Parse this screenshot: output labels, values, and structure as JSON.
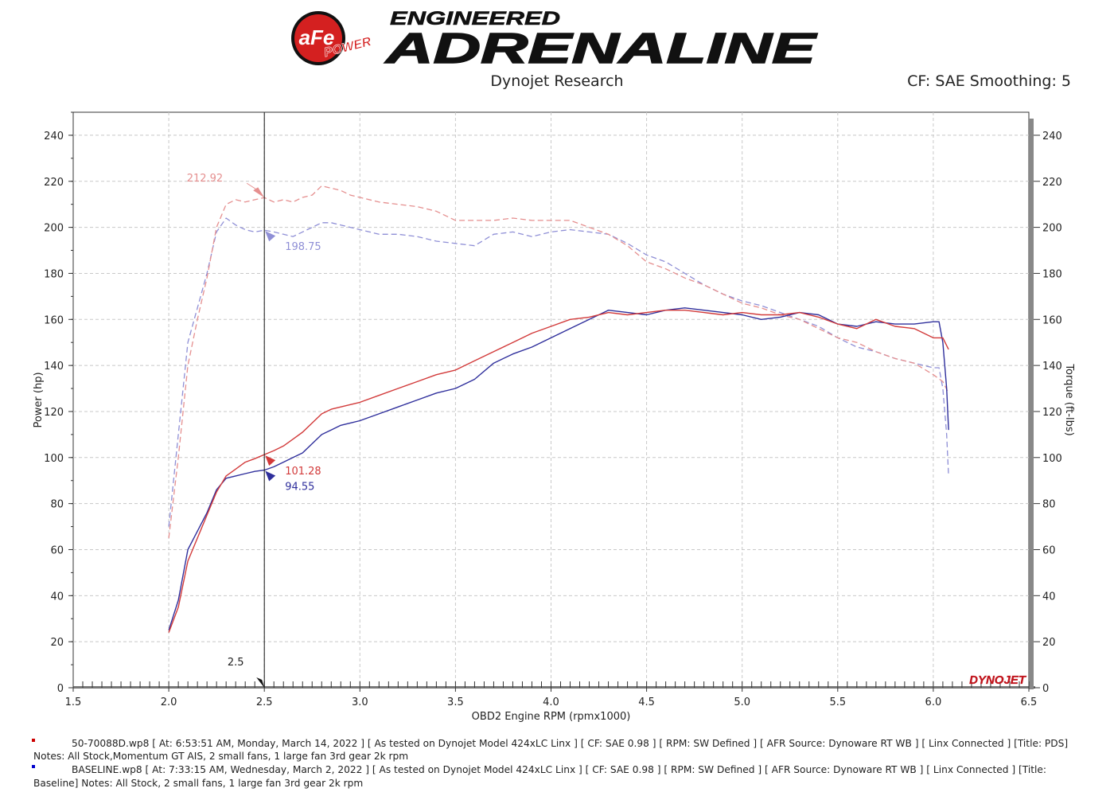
{
  "header": {
    "logo_badge": "aFe",
    "logo_badge_sub": "POWER",
    "logo_line1": "ENGINEERED",
    "logo_line2": "ADRENALINE",
    "center_text": "Dynojet Research",
    "right_text": "CF: SAE Smoothing: 5",
    "brand_mark": "DYNOJET"
  },
  "chart_data": {
    "type": "line",
    "xlabel": "OBD2 Engine RPM (rpmx1000)",
    "ylabel": "Power (hp)",
    "y2label": "Torque (ft-lbs)",
    "xlim": [
      1.5,
      6.5
    ],
    "ylim": [
      0,
      250
    ],
    "y2lim": [
      0,
      250
    ],
    "x_ticks": [
      "1.5",
      "2.0",
      "2.5",
      "3.0",
      "3.5",
      "4.0",
      "4.5",
      "5.0",
      "5.5",
      "6.0",
      "6.5"
    ],
    "y_ticks": [
      "0",
      "20",
      "40",
      "60",
      "80",
      "100",
      "120",
      "140",
      "160",
      "180",
      "200",
      "220",
      "240"
    ],
    "grid": true,
    "cursor": {
      "x": 2.5,
      "label": "2.5"
    },
    "colors": {
      "pds": "#d23a3a",
      "baseline": "#2f2f9c",
      "pds_torque": "#e58f8f",
      "baseline_torque": "#8f8fd6"
    },
    "series": [
      {
        "name": "PDS",
        "measure": "power",
        "axis": "left",
        "dashed": false,
        "color_key": "pds",
        "x": [
          2.0,
          2.05,
          2.1,
          2.15,
          2.2,
          2.25,
          2.3,
          2.35,
          2.4,
          2.45,
          2.5,
          2.55,
          2.6,
          2.65,
          2.7,
          2.75,
          2.8,
          2.85,
          2.9,
          2.95,
          3.0,
          3.1,
          3.2,
          3.3,
          3.4,
          3.5,
          3.6,
          3.7,
          3.8,
          3.9,
          4.0,
          4.1,
          4.2,
          4.3,
          4.4,
          4.5,
          4.6,
          4.7,
          4.8,
          4.9,
          5.0,
          5.1,
          5.2,
          5.3,
          5.4,
          5.5,
          5.6,
          5.7,
          5.8,
          5.9,
          6.0,
          6.05,
          6.08
        ],
        "y": [
          24,
          35,
          55,
          65,
          75,
          85,
          92,
          95,
          98,
          99.5,
          101.28,
          103,
          105,
          108,
          111,
          115,
          119,
          121,
          122,
          123,
          124,
          127,
          130,
          133,
          136,
          138,
          142,
          146,
          150,
          154,
          157,
          160,
          161,
          163,
          162,
          163,
          164,
          164,
          163,
          162,
          163,
          162,
          162,
          163,
          161,
          158,
          156,
          160,
          157,
          156,
          152,
          152,
          147
        ]
      },
      {
        "name": "Baseline",
        "measure": "power",
        "axis": "left",
        "dashed": false,
        "color_key": "baseline",
        "x": [
          2.0,
          2.05,
          2.1,
          2.15,
          2.2,
          2.25,
          2.3,
          2.35,
          2.4,
          2.45,
          2.5,
          2.55,
          2.6,
          2.65,
          2.7,
          2.75,
          2.8,
          2.85,
          2.9,
          2.95,
          3.0,
          3.1,
          3.2,
          3.3,
          3.4,
          3.5,
          3.6,
          3.7,
          3.8,
          3.9,
          4.0,
          4.1,
          4.2,
          4.3,
          4.4,
          4.5,
          4.6,
          4.7,
          4.8,
          4.9,
          5.0,
          5.1,
          5.2,
          5.3,
          5.4,
          5.5,
          5.6,
          5.7,
          5.8,
          5.9,
          6.0,
          6.03,
          6.05,
          6.07,
          6.08
        ],
        "y": [
          25,
          38,
          60,
          68,
          76,
          86,
          91,
          92,
          93,
          94,
          94.55,
          96,
          98,
          100,
          102,
          106,
          110,
          112,
          114,
          115,
          116,
          119,
          122,
          125,
          128,
          130,
          134,
          141,
          145,
          148,
          152,
          156,
          160,
          164,
          163,
          162,
          164,
          165,
          164,
          163,
          162,
          160,
          161,
          163,
          162,
          158,
          157,
          159,
          158,
          158,
          159,
          159,
          150,
          130,
          112
        ]
      },
      {
        "name": "PDS",
        "measure": "torque",
        "axis": "right",
        "dashed": true,
        "color_key": "pds_torque",
        "x": [
          2.0,
          2.05,
          2.1,
          2.15,
          2.2,
          2.25,
          2.3,
          2.35,
          2.4,
          2.45,
          2.5,
          2.55,
          2.6,
          2.65,
          2.7,
          2.75,
          2.8,
          2.85,
          2.9,
          2.95,
          3.0,
          3.1,
          3.2,
          3.3,
          3.4,
          3.5,
          3.6,
          3.7,
          3.8,
          3.9,
          4.0,
          4.1,
          4.2,
          4.3,
          4.4,
          4.5,
          4.6,
          4.7,
          4.8,
          4.9,
          5.0,
          5.1,
          5.2,
          5.3,
          5.4,
          5.5,
          5.6,
          5.7,
          5.8,
          5.9,
          6.0,
          6.05,
          6.08
        ],
        "y": [
          65,
          100,
          140,
          160,
          178,
          200,
          210,
          212,
          211,
          212,
          212.92,
          211,
          212,
          211,
          213,
          214,
          218,
          217,
          216,
          214,
          213,
          211,
          210,
          209,
          207,
          203,
          203,
          203,
          204,
          203,
          203,
          203,
          200,
          197,
          192,
          185,
          182,
          178,
          175,
          171,
          167,
          165,
          162,
          160,
          156,
          152,
          150,
          146,
          143,
          141,
          136,
          133,
          128
        ]
      },
      {
        "name": "Baseline",
        "measure": "torque",
        "axis": "right",
        "dashed": true,
        "color_key": "baseline_torque",
        "x": [
          2.0,
          2.05,
          2.1,
          2.15,
          2.2,
          2.25,
          2.3,
          2.35,
          2.4,
          2.45,
          2.5,
          2.55,
          2.6,
          2.65,
          2.7,
          2.75,
          2.8,
          2.85,
          2.9,
          2.95,
          3.0,
          3.1,
          3.2,
          3.3,
          3.4,
          3.5,
          3.6,
          3.7,
          3.8,
          3.9,
          4.0,
          4.1,
          4.2,
          4.3,
          4.4,
          4.5,
          4.6,
          4.7,
          4.8,
          4.9,
          5.0,
          5.1,
          5.2,
          5.3,
          5.4,
          5.5,
          5.6,
          5.7,
          5.8,
          5.9,
          6.0,
          6.03,
          6.05,
          6.07,
          6.08
        ],
        "y": [
          70,
          110,
          150,
          165,
          180,
          198,
          204,
          201,
          199,
          198,
          198.75,
          198,
          197,
          196,
          198,
          200,
          202,
          202,
          201,
          200,
          199,
          197,
          197,
          196,
          194,
          193,
          192,
          197,
          198,
          196,
          198,
          199,
          198,
          197,
          193,
          188,
          185,
          180,
          175,
          171,
          168,
          166,
          163,
          160,
          157,
          152,
          148,
          146,
          143,
          141,
          139,
          139,
          130,
          110,
          92
        ]
      }
    ],
    "annotations": [
      {
        "x": 2.5,
        "value": 212.92,
        "label": "212.92",
        "axis": "right",
        "color_key": "pds_torque",
        "label_side": "left"
      },
      {
        "x": 2.5,
        "value": 198.75,
        "label": "198.75",
        "axis": "right",
        "color_key": "baseline_torque",
        "label_side": "right"
      },
      {
        "x": 2.5,
        "value": 101.28,
        "label": "101.28",
        "axis": "left",
        "color_key": "pds",
        "label_side": "right"
      },
      {
        "x": 2.5,
        "value": 94.55,
        "label": "94.55",
        "axis": "left",
        "color_key": "baseline",
        "label_side": "right"
      }
    ]
  },
  "legend": [
    {
      "marker_color": "#cc0000",
      "file": "50-70088D.wp8",
      "details": "[ At: 6:53:51 AM, Monday, March 14, 2022 ] [ As tested on Dynojet Model 424xLC Linx ] [ CF: SAE 0.98 ] [ RPM: SW Defined ] [ AFR Source: Dynoware RT WB ] [ Linx Connected ] [Title: PDS]  Notes: All Stock,Momentum GT AIS, 2 small fans, 1 large fan 3rd gear 2k rpm"
    },
    {
      "marker_color": "#0000cc",
      "file": "BASELINE.wp8",
      "details": "[ At: 7:33:15 AM, Wednesday, March 2, 2022 ] [ As tested on Dynojet Model 424xLC Linx ] [ CF: SAE 0.98 ] [ RPM: SW Defined ] [ AFR Source: Dynoware RT WB ] [ Linx Connected ] [Title: Baseline]  Notes: All Stock, 2 small fans, 1 large fan 3rd gear 2k rpm"
    }
  ]
}
